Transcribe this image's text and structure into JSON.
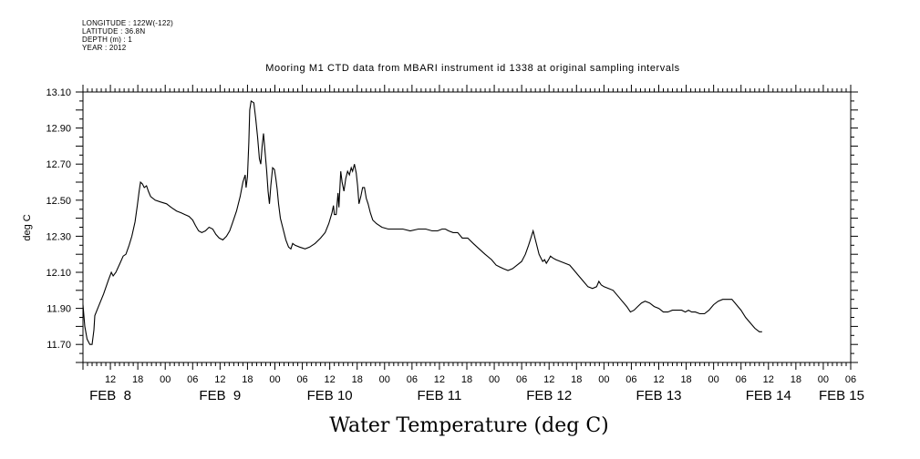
{
  "meta": {
    "longitude": "LONGITUDE : 122W(-122)",
    "latitude": "LATITUDE : 36.8N",
    "depth": "DEPTH (m) : 1",
    "year": "YEAR : 2012"
  },
  "chart_data": {
    "type": "line",
    "title": "Mooring M1 CTD data from MBARI instrument id 1338 at original sampling intervals",
    "xlabel": "Water Temperature (deg C)",
    "ylabel": "deg C",
    "ylim": [
      11.6,
      13.1
    ],
    "xlim_hours": [
      126,
      294
    ],
    "grid": false,
    "y_ticks": [
      "11.70",
      "11.90",
      "12.10",
      "12.30",
      "12.50",
      "12.70",
      "12.90",
      "13.10"
    ],
    "x_hour_labels": [
      {
        "label": "12",
        "h": 132
      },
      {
        "label": "18",
        "h": 138
      },
      {
        "label": "00",
        "h": 144
      },
      {
        "label": "06",
        "h": 150
      },
      {
        "label": "12",
        "h": 156
      },
      {
        "label": "18",
        "h": 162
      },
      {
        "label": "00",
        "h": 168
      },
      {
        "label": "06",
        "h": 174
      },
      {
        "label": "12",
        "h": 180
      },
      {
        "label": "18",
        "h": 186
      },
      {
        "label": "00",
        "h": 192
      },
      {
        "label": "06",
        "h": 198
      },
      {
        "label": "12",
        "h": 204
      },
      {
        "label": "18",
        "h": 210
      },
      {
        "label": "00",
        "h": 216
      },
      {
        "label": "06",
        "h": 222
      },
      {
        "label": "12",
        "h": 228
      },
      {
        "label": "18",
        "h": 234
      },
      {
        "label": "00",
        "h": 240
      },
      {
        "label": "06",
        "h": 246
      },
      {
        "label": "12",
        "h": 252
      },
      {
        "label": "18",
        "h": 258
      },
      {
        "label": "00",
        "h": 264
      },
      {
        "label": "06",
        "h": 270
      },
      {
        "label": "12",
        "h": 276
      },
      {
        "label": "18",
        "h": 282
      },
      {
        "label": "00",
        "h": 288
      },
      {
        "label": "06",
        "h": 294
      }
    ],
    "x_day_labels": [
      {
        "label": "FEB  8",
        "h": 132
      },
      {
        "label": "FEB  9",
        "h": 156
      },
      {
        "label": "FEB 10",
        "h": 180
      },
      {
        "label": "FEB 11",
        "h": 204
      },
      {
        "label": "FEB 12",
        "h": 228
      },
      {
        "label": "FEB 13",
        "h": 252
      },
      {
        "label": "FEB 14",
        "h": 276
      },
      {
        "label": "FEB 15",
        "h": 292
      }
    ],
    "series": [
      {
        "color": "#000000",
        "points": [
          [
            126.0,
            11.92
          ],
          [
            126.4,
            11.8
          ],
          [
            126.9,
            11.73
          ],
          [
            127.5,
            11.7
          ],
          [
            128.0,
            11.7
          ],
          [
            128.4,
            11.78
          ],
          [
            128.6,
            11.86
          ],
          [
            129.4,
            11.91
          ],
          [
            130.5,
            11.98
          ],
          [
            131.6,
            12.06
          ],
          [
            132.2,
            12.1
          ],
          [
            132.6,
            12.08
          ],
          [
            133.2,
            12.1
          ],
          [
            134.1,
            12.15
          ],
          [
            134.8,
            12.19
          ],
          [
            135.4,
            12.2
          ],
          [
            136.1,
            12.25
          ],
          [
            136.7,
            12.3
          ],
          [
            137.4,
            12.38
          ],
          [
            137.9,
            12.47
          ],
          [
            138.3,
            12.55
          ],
          [
            138.6,
            12.6
          ],
          [
            139.0,
            12.59
          ],
          [
            139.4,
            12.57
          ],
          [
            139.9,
            12.58
          ],
          [
            140.3,
            12.55
          ],
          [
            140.8,
            12.52
          ],
          [
            141.8,
            12.5
          ],
          [
            143.0,
            12.49
          ],
          [
            144.3,
            12.48
          ],
          [
            145.3,
            12.46
          ],
          [
            146.5,
            12.44
          ],
          [
            147.5,
            12.43
          ],
          [
            148.3,
            12.42
          ],
          [
            149.2,
            12.41
          ],
          [
            150.0,
            12.39
          ],
          [
            150.6,
            12.36
          ],
          [
            151.3,
            12.33
          ],
          [
            152.0,
            12.32
          ],
          [
            152.8,
            12.33
          ],
          [
            153.6,
            12.35
          ],
          [
            154.4,
            12.34
          ],
          [
            155.1,
            12.31
          ],
          [
            155.8,
            12.29
          ],
          [
            156.6,
            12.28
          ],
          [
            157.4,
            12.3
          ],
          [
            158.1,
            12.33
          ],
          [
            158.8,
            12.38
          ],
          [
            159.6,
            12.44
          ],
          [
            160.4,
            12.52
          ],
          [
            161.0,
            12.6
          ],
          [
            161.5,
            12.64
          ],
          [
            161.7,
            12.57
          ],
          [
            162.0,
            12.63
          ],
          [
            162.3,
            12.82
          ],
          [
            162.5,
            13.0
          ],
          [
            162.8,
            13.05
          ],
          [
            163.4,
            13.04
          ],
          [
            163.8,
            12.95
          ],
          [
            164.2,
            12.85
          ],
          [
            164.6,
            12.73
          ],
          [
            164.9,
            12.7
          ],
          [
            165.2,
            12.8
          ],
          [
            165.5,
            12.87
          ],
          [
            165.8,
            12.78
          ],
          [
            166.2,
            12.66
          ],
          [
            166.5,
            12.55
          ],
          [
            166.8,
            12.48
          ],
          [
            167.1,
            12.58
          ],
          [
            167.5,
            12.68
          ],
          [
            167.9,
            12.67
          ],
          [
            168.2,
            12.62
          ],
          [
            168.5,
            12.56
          ],
          [
            168.8,
            12.48
          ],
          [
            169.2,
            12.4
          ],
          [
            169.8,
            12.34
          ],
          [
            170.4,
            12.28
          ],
          [
            171.0,
            12.24
          ],
          [
            171.5,
            12.23
          ],
          [
            171.9,
            12.26
          ],
          [
            172.4,
            12.25
          ],
          [
            173.4,
            12.24
          ],
          [
            174.6,
            12.23
          ],
          [
            175.6,
            12.24
          ],
          [
            176.8,
            12.26
          ],
          [
            178.0,
            12.29
          ],
          [
            179.0,
            12.32
          ],
          [
            179.8,
            12.37
          ],
          [
            180.5,
            12.43
          ],
          [
            180.8,
            12.47
          ],
          [
            181.0,
            12.42
          ],
          [
            181.4,
            12.42
          ],
          [
            181.8,
            12.54
          ],
          [
            182.0,
            12.46
          ],
          [
            182.4,
            12.66
          ],
          [
            182.7,
            12.6
          ],
          [
            183.1,
            12.55
          ],
          [
            183.5,
            12.62
          ],
          [
            183.9,
            12.66
          ],
          [
            184.3,
            12.64
          ],
          [
            184.7,
            12.68
          ],
          [
            185.0,
            12.66
          ],
          [
            185.4,
            12.7
          ],
          [
            185.8,
            12.65
          ],
          [
            186.1,
            12.58
          ],
          [
            186.4,
            12.48
          ],
          [
            186.8,
            12.52
          ],
          [
            187.2,
            12.57
          ],
          [
            187.6,
            12.57
          ],
          [
            188.0,
            12.51
          ],
          [
            188.4,
            12.48
          ],
          [
            188.9,
            12.43
          ],
          [
            189.4,
            12.39
          ],
          [
            190.2,
            12.37
          ],
          [
            191.4,
            12.35
          ],
          [
            192.8,
            12.34
          ],
          [
            194.4,
            12.34
          ],
          [
            196.0,
            12.34
          ],
          [
            197.6,
            12.33
          ],
          [
            199.4,
            12.34
          ],
          [
            201.0,
            12.34
          ],
          [
            202.4,
            12.33
          ],
          [
            203.6,
            12.33
          ],
          [
            204.6,
            12.34
          ],
          [
            205.3,
            12.34
          ],
          [
            206.0,
            12.33
          ],
          [
            207.0,
            12.32
          ],
          [
            208.0,
            12.32
          ],
          [
            209.0,
            12.29
          ],
          [
            210.2,
            12.29
          ],
          [
            211.4,
            12.26
          ],
          [
            212.7,
            12.23
          ],
          [
            214.0,
            12.2
          ],
          [
            215.4,
            12.17
          ],
          [
            216.4,
            12.14
          ],
          [
            217.2,
            12.13
          ],
          [
            218.0,
            12.12
          ],
          [
            219.0,
            12.11
          ],
          [
            220.0,
            12.12
          ],
          [
            221.0,
            12.14
          ],
          [
            222.0,
            12.16
          ],
          [
            222.8,
            12.2
          ],
          [
            223.5,
            12.25
          ],
          [
            224.0,
            12.29
          ],
          [
            224.5,
            12.33
          ],
          [
            224.8,
            12.3
          ],
          [
            225.3,
            12.25
          ],
          [
            225.8,
            12.2
          ],
          [
            226.2,
            12.18
          ],
          [
            226.6,
            12.16
          ],
          [
            227.0,
            12.17
          ],
          [
            227.4,
            12.15
          ],
          [
            227.9,
            12.17
          ],
          [
            228.3,
            12.19
          ],
          [
            228.8,
            12.18
          ],
          [
            229.5,
            12.17
          ],
          [
            230.5,
            12.16
          ],
          [
            231.5,
            12.15
          ],
          [
            232.5,
            12.14
          ],
          [
            233.5,
            12.11
          ],
          [
            234.5,
            12.08
          ],
          [
            235.5,
            12.05
          ],
          [
            236.5,
            12.02
          ],
          [
            237.5,
            12.01
          ],
          [
            238.4,
            12.02
          ],
          [
            238.9,
            12.05
          ],
          [
            239.4,
            12.03
          ],
          [
            240.0,
            12.02
          ],
          [
            241.0,
            12.01
          ],
          [
            242.0,
            12.0
          ],
          [
            243.0,
            11.97
          ],
          [
            244.0,
            11.94
          ],
          [
            245.0,
            11.91
          ],
          [
            245.8,
            11.88
          ],
          [
            246.6,
            11.89
          ],
          [
            247.4,
            11.91
          ],
          [
            248.2,
            11.93
          ],
          [
            249.0,
            11.94
          ],
          [
            250.0,
            11.93
          ],
          [
            251.0,
            11.91
          ],
          [
            252.0,
            11.9
          ],
          [
            253.0,
            11.88
          ],
          [
            254.0,
            11.88
          ],
          [
            255.0,
            11.89
          ],
          [
            256.0,
            11.89
          ],
          [
            257.0,
            11.89
          ],
          [
            257.8,
            11.88
          ],
          [
            258.5,
            11.89
          ],
          [
            259.2,
            11.88
          ],
          [
            260.0,
            11.88
          ],
          [
            261.0,
            11.87
          ],
          [
            262.0,
            11.87
          ],
          [
            263.0,
            11.89
          ],
          [
            264.0,
            11.92
          ],
          [
            265.0,
            11.94
          ],
          [
            266.0,
            11.95
          ],
          [
            267.0,
            11.95
          ],
          [
            268.0,
            11.95
          ],
          [
            269.0,
            11.92
          ],
          [
            270.0,
            11.89
          ],
          [
            271.0,
            11.85
          ],
          [
            272.0,
            11.82
          ],
          [
            273.0,
            11.79
          ],
          [
            274.0,
            11.77
          ],
          [
            274.6,
            11.77
          ]
        ]
      }
    ]
  }
}
